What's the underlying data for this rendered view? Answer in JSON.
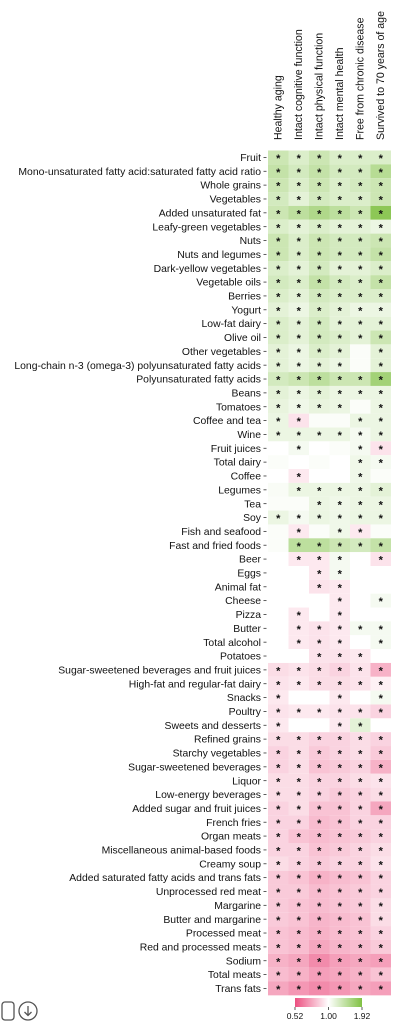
{
  "chart_data": {
    "type": "heatmap",
    "columns": [
      "Healthy aging",
      "Intact cognitive function",
      "Intact physical function",
      "Intact mental health",
      "Free from chronic disease",
      "Survived to 70 years of age"
    ],
    "categories": [
      "Fruit",
      "Mono-unsaturated fatty acid:saturated fatty acid ratio",
      "Whole grains",
      "Vegetables",
      "Added unsaturated fat",
      "Leafy-green vegetables",
      "Nuts",
      "Nuts and legumes",
      "Dark-yellow vegetables",
      "Vegetable oils",
      "Berries",
      "Yogurt",
      "Low-fat dairy",
      "Olive oil",
      "Other vegetables",
      "Long-chain n-3 (omega-3) polyunsaturated fatty acids",
      "Polyunsaturated fatty acids",
      "Beans",
      "Tomatoes",
      "Coffee and tea",
      "Wine",
      "Fruit juices",
      "Total dairy",
      "Coffee",
      "Legumes",
      "Tea",
      "Soy",
      "Fish and seafood",
      "Fast and fried foods",
      "Beer",
      "Eggs",
      "Animal fat",
      "Cheese",
      "Pizza",
      "Butter",
      "Total alcohol",
      "Potatoes",
      "Sugar-sweetened beverages and fruit juices",
      "High-fat and regular-fat dairy",
      "Snacks",
      "Poultry",
      "Sweets and desserts",
      "Refined grains",
      "Starchy vegetables",
      "Sugar-sweetened beverages",
      "Liquor",
      "Low-energy beverages",
      "Added sugar and fruit juices",
      "French fries",
      "Organ meats",
      "Miscellaneous animal-based foods",
      "Creamy soup",
      "Added saturated fatty acids and trans fats",
      "Unprocessed red meat",
      "Margarine",
      "Butter and margarine",
      "Processed meat",
      "Red and processed meats",
      "Sodium",
      "Total meats",
      "Trans fats"
    ],
    "values": [
      [
        1.3,
        1.2,
        1.3,
        1.2,
        1.2,
        1.2
      ],
      [
        1.35,
        1.25,
        1.35,
        1.25,
        1.25,
        1.45
      ],
      [
        1.3,
        1.2,
        1.3,
        1.2,
        1.25,
        1.3
      ],
      [
        1.25,
        1.15,
        1.25,
        1.2,
        1.2,
        1.3
      ],
      [
        1.3,
        1.4,
        1.5,
        1.4,
        1.3,
        1.8
      ],
      [
        1.2,
        1.15,
        1.2,
        1.15,
        1.15,
        1.1
      ],
      [
        1.3,
        1.2,
        1.3,
        1.25,
        1.25,
        1.3
      ],
      [
        1.3,
        1.2,
        1.3,
        1.25,
        1.25,
        1.35
      ],
      [
        1.2,
        1.15,
        1.25,
        1.15,
        1.15,
        1.2
      ],
      [
        1.25,
        1.2,
        1.35,
        1.25,
        1.2,
        1.35
      ],
      [
        1.2,
        1.15,
        1.25,
        1.2,
        1.2,
        1.2
      ],
      [
        1.15,
        1.1,
        1.2,
        1.15,
        1.1,
        1.1
      ],
      [
        1.2,
        1.15,
        1.25,
        1.15,
        1.15,
        1.15
      ],
      [
        1.2,
        1.15,
        1.25,
        1.2,
        1.15,
        1.3
      ],
      [
        1.15,
        1.1,
        1.2,
        1.15,
        1.02,
        1.15
      ],
      [
        1.15,
        1.1,
        1.15,
        1.1,
        1.02,
        1.15
      ],
      [
        1.25,
        1.3,
        1.4,
        1.3,
        1.3,
        1.6
      ],
      [
        1.15,
        1.1,
        1.15,
        1.1,
        1.1,
        1.1
      ],
      [
        1.12,
        1.08,
        1.12,
        1.1,
        1.02,
        1.1
      ],
      [
        1.1,
        0.9,
        1.02,
        1.02,
        1.1,
        1.1
      ],
      [
        1.1,
        1.1,
        1.1,
        1.1,
        1.05,
        1.1
      ],
      [
        1.0,
        1.05,
        1.0,
        1.02,
        1.05,
        0.9
      ],
      [
        1.02,
        1.0,
        1.02,
        1.0,
        1.08,
        1.05
      ],
      [
        1.0,
        0.92,
        1.0,
        1.0,
        1.08,
        1.02
      ],
      [
        1.03,
        1.1,
        1.1,
        1.1,
        1.1,
        1.15
      ],
      [
        1.02,
        1.02,
        1.1,
        1.08,
        1.1,
        1.1
      ],
      [
        1.1,
        1.05,
        1.1,
        1.08,
        1.1,
        1.1
      ],
      [
        1.02,
        0.92,
        1.02,
        1.08,
        0.92,
        1.02
      ],
      [
        1.02,
        1.4,
        1.4,
        1.3,
        1.25,
        1.35
      ],
      [
        1.0,
        0.92,
        0.92,
        1.05,
        1.0,
        0.9
      ],
      [
        1.0,
        1.0,
        0.92,
        1.05,
        1.0,
        1.0
      ],
      [
        1.0,
        1.0,
        0.9,
        0.92,
        1.0,
        1.0
      ],
      [
        1.0,
        1.0,
        1.0,
        0.92,
        1.0,
        1.05
      ],
      [
        1.0,
        0.92,
        1.0,
        0.92,
        1.0,
        1.0
      ],
      [
        1.0,
        0.92,
        0.9,
        0.92,
        1.05,
        1.05
      ],
      [
        1.0,
        0.92,
        0.9,
        0.92,
        1.0,
        1.05
      ],
      [
        1.0,
        1.0,
        0.9,
        0.9,
        0.92,
        1.0
      ],
      [
        0.88,
        0.9,
        0.88,
        0.85,
        0.9,
        0.75
      ],
      [
        0.9,
        0.92,
        0.88,
        0.88,
        0.9,
        0.95
      ],
      [
        0.92,
        1.0,
        1.0,
        0.92,
        1.0,
        1.05
      ],
      [
        0.9,
        0.92,
        0.92,
        0.9,
        0.9,
        0.85
      ],
      [
        0.92,
        1.0,
        1.0,
        0.92,
        1.15,
        1.0
      ],
      [
        0.88,
        0.88,
        0.85,
        0.85,
        0.88,
        0.85
      ],
      [
        0.85,
        0.88,
        0.82,
        0.85,
        0.88,
        0.82
      ],
      [
        0.85,
        0.88,
        0.8,
        0.82,
        0.85,
        0.75
      ],
      [
        0.88,
        0.88,
        0.85,
        0.85,
        0.88,
        0.9
      ],
      [
        0.88,
        0.88,
        0.85,
        0.82,
        0.85,
        0.88
      ],
      [
        0.85,
        0.88,
        0.8,
        0.8,
        0.85,
        0.72
      ],
      [
        0.85,
        0.85,
        0.78,
        0.8,
        0.85,
        0.85
      ],
      [
        0.85,
        0.8,
        0.78,
        0.8,
        0.82,
        0.85
      ],
      [
        0.85,
        0.85,
        0.8,
        0.82,
        0.85,
        0.88
      ],
      [
        0.88,
        0.85,
        0.82,
        0.85,
        0.85,
        0.9
      ],
      [
        0.82,
        0.8,
        0.75,
        0.78,
        0.8,
        0.85
      ],
      [
        0.82,
        0.82,
        0.78,
        0.8,
        0.82,
        0.85
      ],
      [
        0.82,
        0.8,
        0.78,
        0.8,
        0.82,
        0.88
      ],
      [
        0.82,
        0.8,
        0.76,
        0.78,
        0.8,
        0.88
      ],
      [
        0.8,
        0.78,
        0.75,
        0.78,
        0.8,
        0.85
      ],
      [
        0.8,
        0.78,
        0.72,
        0.76,
        0.78,
        0.82
      ],
      [
        0.75,
        0.72,
        0.65,
        0.7,
        0.72,
        0.7
      ],
      [
        0.78,
        0.75,
        0.7,
        0.72,
        0.75,
        0.8
      ],
      [
        0.72,
        0.68,
        0.65,
        0.68,
        0.72,
        0.7
      ]
    ],
    "significant": [
      [
        true,
        true,
        true,
        true,
        true,
        true
      ],
      [
        true,
        true,
        true,
        true,
        true,
        true
      ],
      [
        true,
        true,
        true,
        true,
        true,
        true
      ],
      [
        true,
        true,
        true,
        true,
        true,
        true
      ],
      [
        true,
        true,
        true,
        true,
        true,
        true
      ],
      [
        true,
        true,
        true,
        true,
        true,
        true
      ],
      [
        true,
        true,
        true,
        true,
        true,
        true
      ],
      [
        true,
        true,
        true,
        true,
        true,
        true
      ],
      [
        true,
        true,
        true,
        true,
        true,
        true
      ],
      [
        true,
        true,
        true,
        true,
        true,
        true
      ],
      [
        true,
        true,
        true,
        true,
        true,
        true
      ],
      [
        true,
        true,
        true,
        true,
        true,
        true
      ],
      [
        true,
        true,
        true,
        true,
        true,
        true
      ],
      [
        true,
        true,
        true,
        true,
        true,
        true
      ],
      [
        true,
        true,
        true,
        true,
        false,
        true
      ],
      [
        true,
        true,
        true,
        true,
        false,
        true
      ],
      [
        true,
        true,
        true,
        true,
        true,
        true
      ],
      [
        true,
        true,
        true,
        true,
        true,
        true
      ],
      [
        true,
        true,
        true,
        true,
        false,
        true
      ],
      [
        true,
        true,
        false,
        false,
        true,
        true
      ],
      [
        true,
        true,
        true,
        true,
        true,
        true
      ],
      [
        false,
        true,
        false,
        false,
        true,
        true
      ],
      [
        false,
        false,
        false,
        false,
        true,
        true
      ],
      [
        false,
        true,
        false,
        false,
        true,
        false
      ],
      [
        false,
        true,
        true,
        true,
        true,
        true
      ],
      [
        false,
        false,
        true,
        true,
        true,
        true
      ],
      [
        true,
        true,
        true,
        true,
        true,
        true
      ],
      [
        false,
        true,
        false,
        true,
        true,
        false
      ],
      [
        false,
        true,
        true,
        true,
        true,
        true
      ],
      [
        false,
        true,
        true,
        true,
        false,
        true
      ],
      [
        false,
        false,
        true,
        true,
        false,
        false
      ],
      [
        false,
        false,
        true,
        true,
        false,
        false
      ],
      [
        false,
        false,
        false,
        true,
        false,
        true
      ],
      [
        false,
        true,
        false,
        true,
        false,
        false
      ],
      [
        false,
        true,
        true,
        true,
        true,
        true
      ],
      [
        false,
        true,
        true,
        true,
        false,
        true
      ],
      [
        false,
        false,
        true,
        true,
        true,
        false
      ],
      [
        true,
        true,
        true,
        true,
        true,
        true
      ],
      [
        true,
        true,
        true,
        true,
        true,
        true
      ],
      [
        true,
        false,
        false,
        true,
        false,
        true
      ],
      [
        true,
        true,
        true,
        true,
        true,
        true
      ],
      [
        true,
        false,
        false,
        true,
        true,
        false
      ],
      [
        true,
        true,
        true,
        true,
        true,
        true
      ],
      [
        true,
        true,
        true,
        true,
        true,
        true
      ],
      [
        true,
        true,
        true,
        true,
        true,
        true
      ],
      [
        true,
        true,
        true,
        true,
        true,
        true
      ],
      [
        true,
        true,
        true,
        true,
        true,
        true
      ],
      [
        true,
        true,
        true,
        true,
        true,
        true
      ],
      [
        true,
        true,
        true,
        true,
        true,
        true
      ],
      [
        true,
        true,
        true,
        true,
        true,
        true
      ],
      [
        true,
        true,
        true,
        true,
        true,
        true
      ],
      [
        true,
        true,
        true,
        true,
        true,
        true
      ],
      [
        true,
        true,
        true,
        true,
        true,
        true
      ],
      [
        true,
        true,
        true,
        true,
        true,
        true
      ],
      [
        true,
        true,
        true,
        true,
        true,
        true
      ],
      [
        true,
        true,
        true,
        true,
        true,
        true
      ],
      [
        true,
        true,
        true,
        true,
        true,
        true
      ],
      [
        true,
        true,
        true,
        true,
        true,
        true
      ],
      [
        true,
        true,
        true,
        true,
        true,
        true
      ],
      [
        true,
        true,
        true,
        true,
        true,
        true
      ],
      [
        true,
        true,
        true,
        true,
        true,
        true
      ]
    ],
    "star": "*",
    "clim": [
      0.52,
      1.92
    ],
    "log_scale": true,
    "cticks": [
      0.52,
      {
        "value": 1,
        "label": "1.00"
      },
      1.92
    ],
    "colors": [
      "#ec4f80",
      "#ffffff",
      "#80c143"
    ]
  }
}
